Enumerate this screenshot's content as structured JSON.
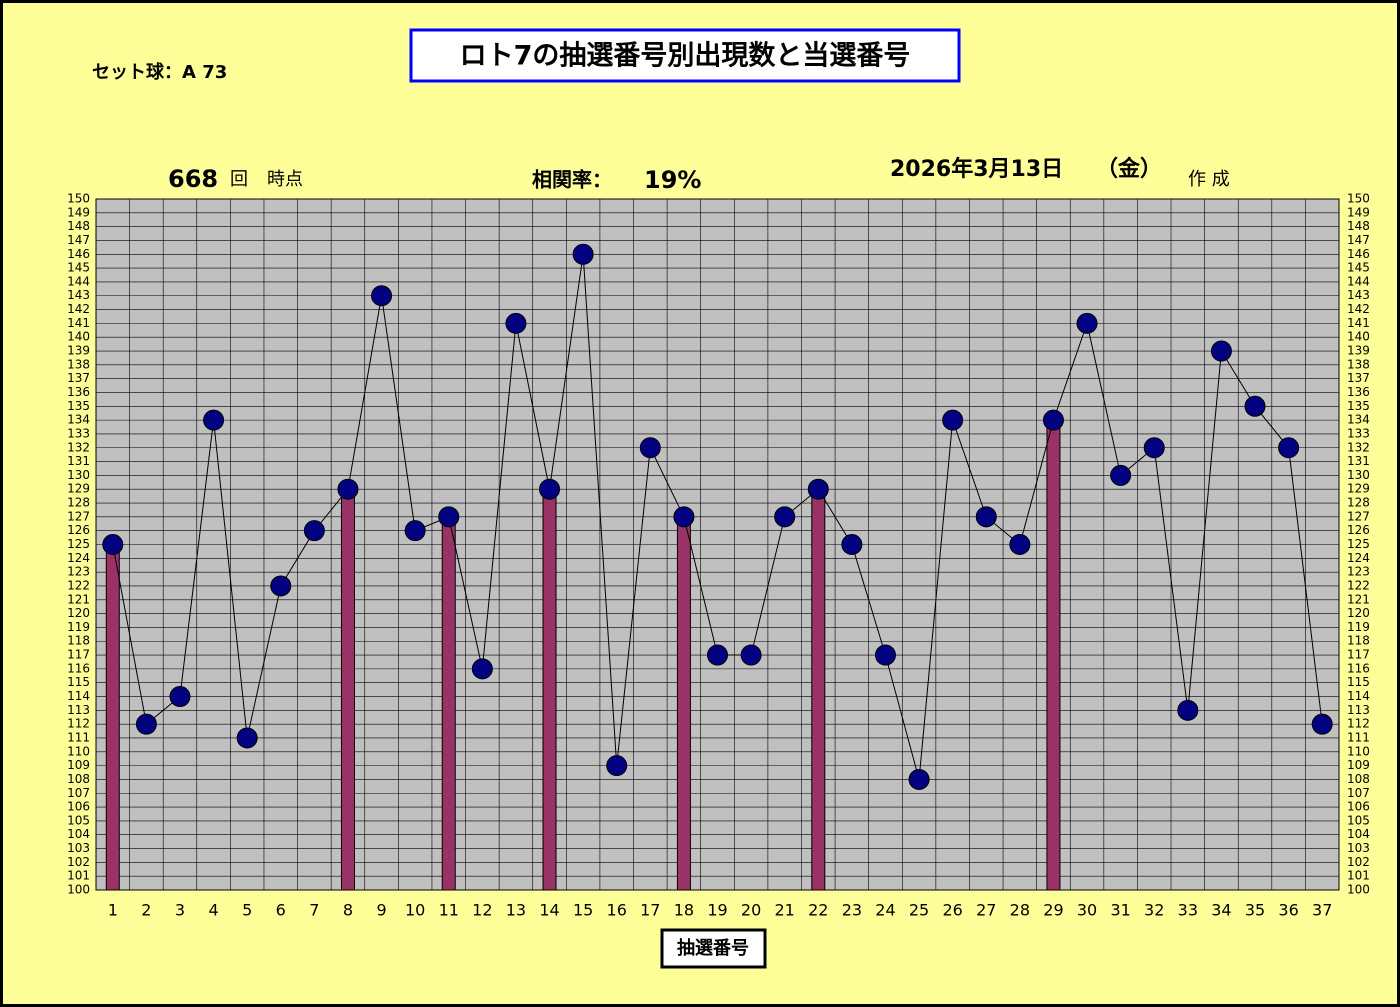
{
  "chart_data": {
    "type": "line_bar",
    "title": "ロト7の抽選番号別出現数と当選番号",
    "set_ball": "セット球：A 73",
    "draw_count": "668",
    "draw_count_unit": "回",
    "draw_count_suffix": "時点",
    "correlation_label": "相関率：",
    "correlation_value": "19%",
    "date": "2026年3月13日",
    "weekday": "（金）",
    "made": "作 成",
    "xlabel": "抽選番号",
    "categories": [
      1,
      2,
      3,
      4,
      5,
      6,
      7,
      8,
      9,
      10,
      11,
      12,
      13,
      14,
      15,
      16,
      17,
      18,
      19,
      20,
      21,
      22,
      23,
      24,
      25,
      26,
      27,
      28,
      29,
      30,
      31,
      32,
      33,
      34,
      35,
      36,
      37
    ],
    "series": [
      {
        "kind": "line",
        "color": "#000080",
        "values": [
          125,
          112,
          114,
          134,
          111,
          122,
          126,
          129,
          143,
          126,
          127,
          116,
          141,
          129,
          146,
          109,
          132,
          127,
          117,
          117,
          127,
          129,
          125,
          117,
          108,
          134,
          127,
          125,
          134,
          141,
          130,
          132,
          113,
          139,
          135,
          132,
          112
        ]
      },
      {
        "kind": "bar",
        "color": "#993366",
        "values": [
          125,
          null,
          null,
          null,
          null,
          null,
          null,
          129,
          null,
          null,
          127,
          null,
          null,
          129,
          null,
          null,
          null,
          127,
          null,
          null,
          null,
          129,
          null,
          null,
          null,
          null,
          null,
          null,
          134,
          null,
          null,
          null,
          null,
          null,
          null,
          null,
          null
        ]
      }
    ],
    "ylim": [
      100,
      150
    ],
    "yticks": [
      100,
      101,
      102,
      103,
      104,
      105,
      106,
      107,
      108,
      109,
      110,
      111,
      112,
      113,
      114,
      115,
      116,
      117,
      118,
      119,
      120,
      121,
      122,
      123,
      124,
      125,
      126,
      127,
      128,
      129,
      130,
      131,
      132,
      133,
      134,
      135,
      136,
      137,
      138,
      139,
      140,
      141,
      142,
      143,
      144,
      145,
      146,
      147,
      148,
      149,
      150
    ],
    "grid": true
  }
}
